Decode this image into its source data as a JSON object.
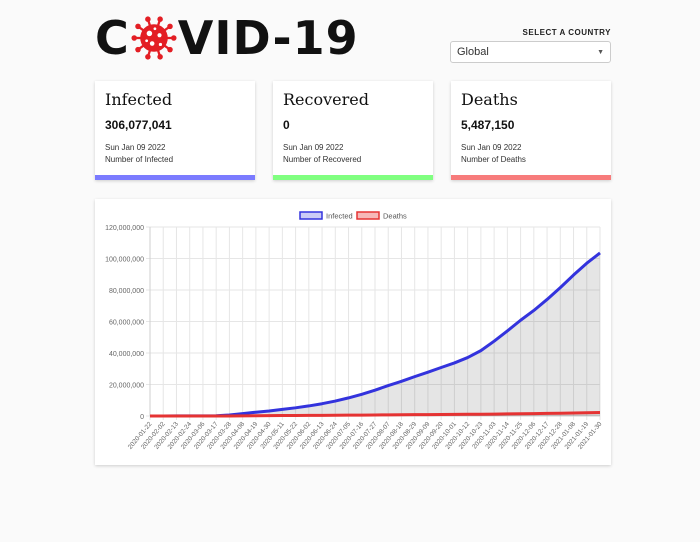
{
  "logo": {
    "text_before": "C",
    "text_after": "VID-19",
    "icon": "virus-icon",
    "accent": "#e31e24"
  },
  "country": {
    "label": "SELECT A COUNTRY",
    "value": "Global"
  },
  "cards": [
    {
      "title": "Infected",
      "value": "306,077,041",
      "date": "Sun Jan 09 2022",
      "desc": "Number of Infected",
      "color": "#7b7bff"
    },
    {
      "title": "Recovered",
      "value": "0",
      "date": "Sun Jan 09 2022",
      "desc": "Number of Recovered",
      "color": "#80ff80"
    },
    {
      "title": "Deaths",
      "value": "5,487,150",
      "date": "Sun Jan 09 2022",
      "desc": "Number of Deaths",
      "color": "#f77b7b"
    }
  ],
  "chart_data": {
    "type": "line",
    "legend": [
      "Infected",
      "Deaths"
    ],
    "legend_position": "top",
    "grid": true,
    "ylim": [
      0,
      120000000
    ],
    "yticks": [
      "0",
      "20,000,000",
      "40,000,000",
      "60,000,000",
      "80,000,000",
      "100,000,000",
      "120,000,000"
    ],
    "x": [
      "2020-01-22",
      "2020-02-02",
      "2020-02-13",
      "2020-02-24",
      "2020-03-06",
      "2020-03-17",
      "2020-03-28",
      "2020-04-08",
      "2020-04-19",
      "2020-04-30",
      "2020-05-11",
      "2020-05-22",
      "2020-06-02",
      "2020-06-13",
      "2020-06-24",
      "2020-07-05",
      "2020-07-16",
      "2020-07-27",
      "2020-08-07",
      "2020-08-18",
      "2020-08-29",
      "2020-09-09",
      "2020-09-20",
      "2020-10-01",
      "2020-10-12",
      "2020-10-23",
      "2020-11-03",
      "2020-11-14",
      "2020-11-25",
      "2020-12-06",
      "2020-12-17",
      "2020-12-28",
      "2021-01-08",
      "2021-01-19",
      "2021-01-30"
    ],
    "series": [
      {
        "name": "Infected",
        "color": "#3333dd",
        "values": [
          557,
          17000,
          60000,
          80000,
          100000,
          180000,
          650000,
          1500000,
          2400000,
          3200000,
          4200000,
          5200000,
          6400000,
          7800000,
          9500000,
          11500000,
          13800000,
          16400000,
          19300000,
          22000000,
          25000000,
          27800000,
          30800000,
          33700000,
          37100000,
          41500000,
          47500000,
          54000000,
          60800000,
          67000000,
          74000000,
          81500000,
          89500000,
          97000000,
          103500000
        ]
      },
      {
        "name": "Deaths",
        "color": "#e53333",
        "values": [
          17,
          360,
          1400,
          2700,
          3500,
          7500,
          30000,
          85000,
          165000,
          230000,
          285000,
          340000,
          380000,
          430000,
          490000,
          540000,
          590000,
          650000,
          720000,
          790000,
          850000,
          910000,
          970000,
          1020000,
          1080000,
          1150000,
          1230000,
          1320000,
          1420000,
          1530000,
          1650000,
          1780000,
          1940000,
          2080000,
          2240000
        ]
      }
    ]
  }
}
